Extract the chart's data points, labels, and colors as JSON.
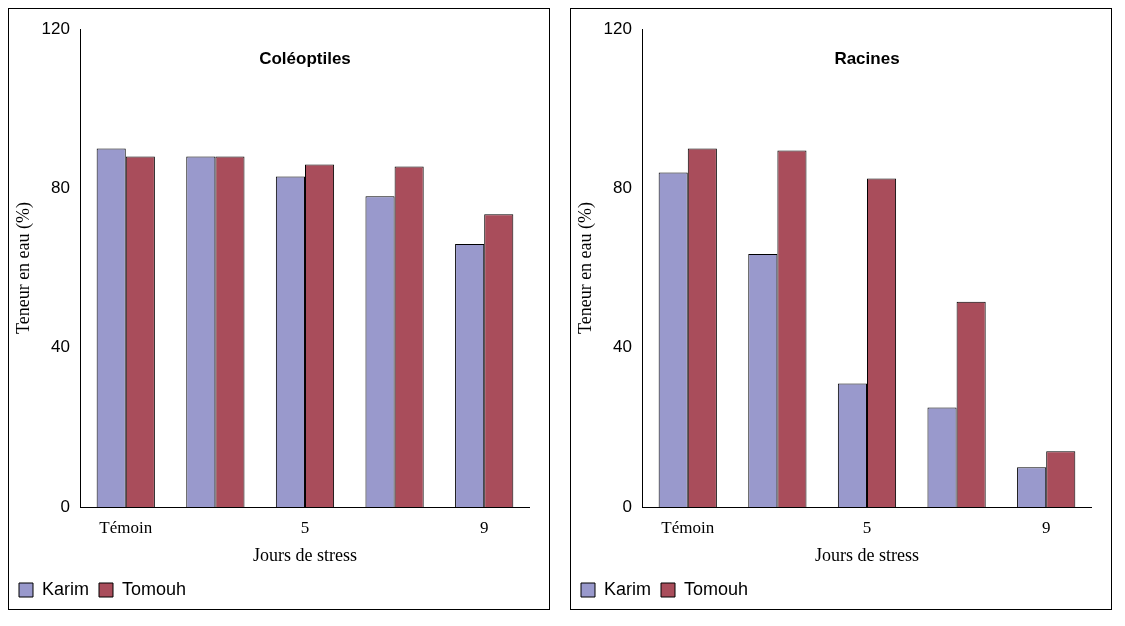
{
  "chart_data": [
    {
      "type": "bar",
      "title": "Coléoptiles",
      "xlabel": "Jours de stress",
      "ylabel": "Teneur en eau (%)",
      "categories": [
        "Témoin",
        null,
        "5",
        null,
        "9"
      ],
      "series": [
        {
          "name": "Karim",
          "color": "#9999cc",
          "values": [
            90,
            88,
            83,
            78,
            66
          ]
        },
        {
          "name": "Tomouh",
          "color": "#a94d5b",
          "values": [
            88,
            88,
            86,
            85.5,
            73.5
          ]
        }
      ],
      "ylim": [
        0,
        120
      ],
      "yticks": [
        0,
        40,
        80,
        120
      ],
      "grid": false,
      "legend": "bottom left"
    },
    {
      "type": "bar",
      "title": "Racines",
      "xlabel": "Jours de stress",
      "ylabel": "Teneur en eau (%)",
      "categories": [
        "Témoin",
        null,
        "5",
        null,
        "9"
      ],
      "series": [
        {
          "name": "Karim",
          "color": "#9999cc",
          "values": [
            84,
            63.5,
            31,
            25,
            10
          ]
        },
        {
          "name": "Tomouh",
          "color": "#a94d5b",
          "values": [
            90,
            89.5,
            82.5,
            51.5,
            14
          ]
        }
      ],
      "ylim": [
        0,
        120
      ],
      "yticks": [
        0,
        40,
        80,
        120
      ],
      "grid": false,
      "legend": "bottom left"
    }
  ]
}
